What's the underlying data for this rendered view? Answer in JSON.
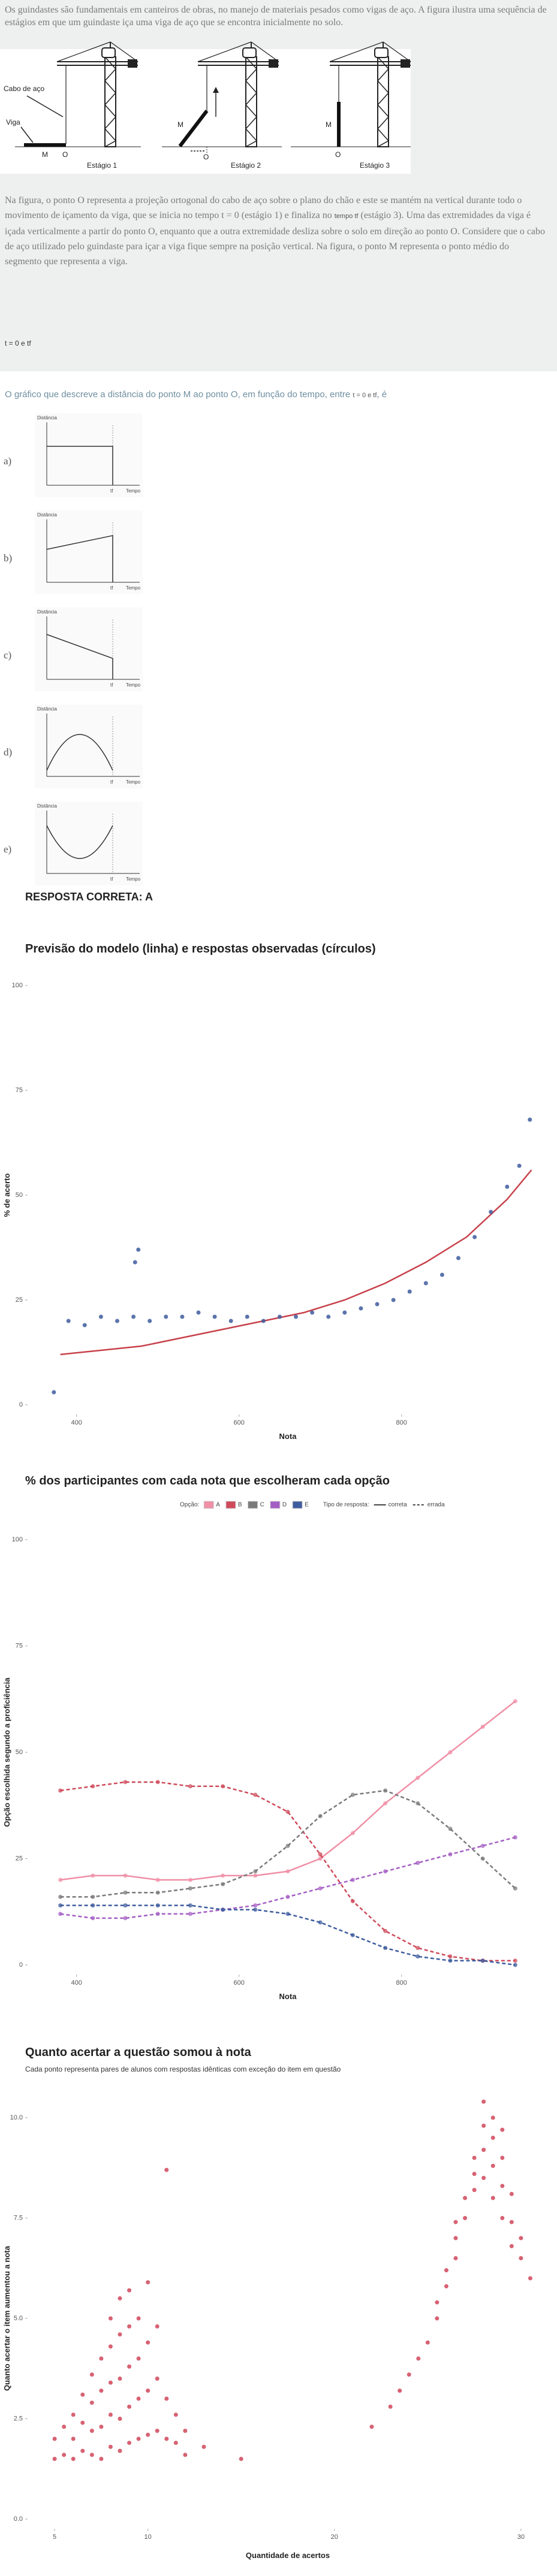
{
  "question": {
    "intro": "Os guindastes são fundamentais em canteiros de obras, no manejo de materiais pesados como vigas de aço. A figura ilustra uma sequência de estágios em que um  guindaste iça uma viga de aço que se encontra inicialmente no solo.",
    "figure": {
      "cable_label": "Cabo de aço",
      "beam_label": "Viga",
      "point_m": "M",
      "point_o": "O",
      "stages": [
        "Estágio 1",
        "Estágio 2",
        "Estágio 3"
      ]
    },
    "body_start": "Na figura, o ponto O representa a projeção ortogonal do cabo de aço sobre o plano do chão e este se mantém na vertical durante todo o movimento de içamento da viga, que se inicia no tempo t = 0 (estágio 1) e finaliza no ",
    "body_time": "tempo tf",
    "body_end": " (estágio 3). Uma das extremidades da viga é içada verticalmente a partir do ponto O, enquanto que a outra extremidade desliza sobre o solo em direção ao ponto O. Considere que o cabo de aço utilizado pelo guindaste para içar a viga fique sempre na posição vertical. Na figura, o ponto M representa o ponto médio do segmento que representa a viga.",
    "interval": "t = 0 e tf",
    "prompt_start": "O gráfico que descreve a distância do ponto M ao ponto O, em função do tempo, entre ",
    "prompt_interval": "t = 0 e tf",
    "prompt_end": ", é"
  },
  "options": [
    {
      "letter": "a)",
      "y_label": "Distância",
      "x_label": "Tempo",
      "t_label": "tf"
    },
    {
      "letter": "b)",
      "y_label": "Distância",
      "x_label": "Tempo",
      "t_label": "tf"
    },
    {
      "letter": "c)",
      "y_label": "Distância",
      "x_label": "Tempo",
      "t_label": "tf"
    },
    {
      "letter": "d)",
      "y_label": "Distância",
      "x_label": "Tempo",
      "t_label": "tf"
    },
    {
      "letter": "e)",
      "y_label": "Distância",
      "x_label": "Tempo",
      "t_label": "tf"
    }
  ],
  "answer": "RESPOSTA CORRETA: A",
  "chart_data": [
    {
      "type": "scatter",
      "title": "Previsão do modelo (linha) e respostas observadas (círculos)",
      "x_label": "Nota",
      "y_label": "% de acerto",
      "xlim": [
        350,
        970
      ],
      "ylim": [
        0,
        100
      ],
      "xticks": [
        400,
        600,
        800
      ],
      "yticks": [
        0,
        25,
        50,
        75,
        100
      ],
      "grid": false,
      "series": [
        {
          "type": "line",
          "color": "#c8414b",
          "x": [
            380,
            430,
            480,
            530,
            580,
            630,
            680,
            730,
            780,
            830,
            880,
            930,
            960
          ],
          "values": [
            12,
            13,
            14,
            16,
            18,
            20,
            22,
            25,
            29,
            34,
            40,
            49,
            56
          ]
        },
        {
          "type": "scatter",
          "color": "#3e5c9e",
          "x": [
            372,
            390,
            410,
            430,
            450,
            470,
            472,
            476,
            490,
            510,
            530,
            550,
            570,
            590,
            610,
            630,
            650,
            670,
            690,
            710,
            730,
            750,
            770,
            790,
            810,
            830,
            850,
            870,
            890,
            910,
            930,
            945,
            958
          ],
          "values": [
            3,
            20,
            19,
            21,
            20,
            21,
            34,
            37,
            20,
            21,
            21,
            22,
            21,
            20,
            21,
            20,
            21,
            21,
            22,
            21,
            22,
            23,
            24,
            25,
            27,
            29,
            31,
            35,
            40,
            46,
            52,
            57,
            68
          ]
        }
      ]
    },
    {
      "type": "line",
      "title": "% dos participantes com cada nota que escolheram cada opção",
      "x_label": "Nota",
      "y_label": "Opção escolhida segundo a proficiência",
      "legend_title": "Opção:",
      "line_type_legend": {
        "title": "Tipo de resposta:",
        "items": [
          {
            "label": "correta",
            "dash": "solid"
          },
          {
            "label": "errada",
            "dash": "dashed"
          }
        ]
      },
      "xlim": [
        350,
        970
      ],
      "ylim": [
        0,
        100
      ],
      "xticks": [
        400,
        600,
        800
      ],
      "yticks": [
        0,
        25,
        50,
        75,
        100
      ],
      "grid": false,
      "markers": true,
      "x": [
        380,
        420,
        460,
        500,
        540,
        580,
        620,
        660,
        700,
        740,
        780,
        820,
        860,
        900,
        940
      ],
      "series": [
        {
          "name": "A",
          "color": "#f08fa6",
          "dash": "solid",
          "values": [
            20,
            21,
            21,
            20,
            20,
            21,
            21,
            22,
            25,
            31,
            38,
            44,
            50,
            56,
            62
          ]
        },
        {
          "name": "B",
          "color": "#cf4a5a",
          "dash": "dashed",
          "values": [
            41,
            42,
            43,
            43,
            42,
            42,
            40,
            36,
            26,
            15,
            8,
            4,
            2,
            1,
            1
          ]
        },
        {
          "name": "C",
          "color": "#7a7a7a",
          "dash": "dashed",
          "values": [
            16,
            16,
            17,
            17,
            18,
            19,
            22,
            28,
            35,
            40,
            41,
            38,
            32,
            25,
            18
          ]
        },
        {
          "name": "D",
          "color": "#a45fc4",
          "dash": "dashed",
          "values": [
            12,
            11,
            11,
            12,
            12,
            13,
            14,
            16,
            18,
            20,
            22,
            24,
            26,
            28,
            30
          ]
        },
        {
          "name": "E",
          "color": "#3e5c9e",
          "dash": "dashed",
          "values": [
            14,
            14,
            14,
            14,
            14,
            13,
            13,
            12,
            10,
            7,
            4,
            2,
            1,
            1,
            0
          ]
        }
      ]
    },
    {
      "type": "scatter",
      "title": "Quanto acertar a questão somou à nota",
      "subtitle": "Cada ponto representa pares de alunos com respostas idênticas com exceção do item em questão",
      "x_label": "Quantidade de acertos",
      "y_label": "Quanto acertar o item aumentou a nota",
      "xlim": [
        4,
        31
      ],
      "ylim": [
        0,
        10
      ],
      "xticks": [
        5,
        10,
        20,
        30
      ],
      "yticks": [
        {
          "value": 0,
          "label": "0.0"
        },
        2.5,
        {
          "value": 5,
          "label": "5.0"
        },
        7.5,
        {
          "value": 10,
          "label": "10.0"
        }
      ],
      "grid": false,
      "color": "#d0465a",
      "x": [
        5,
        5,
        5.5,
        5.5,
        6,
        6,
        6,
        6.5,
        6.5,
        6.5,
        7,
        7,
        7,
        7,
        7.5,
        7.5,
        7.5,
        7.5,
        8,
        8,
        8,
        8,
        8,
        8.5,
        8.5,
        8.5,
        8.5,
        8.5,
        9,
        9,
        9,
        9,
        9,
        9.5,
        9.5,
        9.5,
        9.5,
        10,
        10,
        10,
        10,
        10.5,
        10.5,
        10.5,
        11,
        11,
        11,
        11.5,
        11.5,
        12,
        12,
        13,
        15,
        22,
        23,
        23.5,
        24,
        24.5,
        25,
        25.5,
        25.5,
        26,
        26,
        26.5,
        26.5,
        26.5,
        27,
        27,
        27.5,
        27.5,
        27.5,
        28,
        28,
        28,
        28,
        28.5,
        28.5,
        28.5,
        28.5,
        29,
        29,
        29,
        29,
        29.5,
        29.5,
        29.5,
        30,
        30,
        30.5
      ],
      "values": [
        1.5,
        2.0,
        1.6,
        2.3,
        1.5,
        2.0,
        2.6,
        1.7,
        2.4,
        3.1,
        1.6,
        2.2,
        2.9,
        3.6,
        1.5,
        2.3,
        3.2,
        4.0,
        1.8,
        2.6,
        3.4,
        4.3,
        5.0,
        1.7,
        2.5,
        3.5,
        4.6,
        5.5,
        1.9,
        2.8,
        3.8,
        4.8,
        5.7,
        2.0,
        3.0,
        4.0,
        5.0,
        2.1,
        3.2,
        4.4,
        5.9,
        2.2,
        3.5,
        4.8,
        2.0,
        3.0,
        8.7,
        1.9,
        2.6,
        1.6,
        2.2,
        1.8,
        1.5,
        2.3,
        2.8,
        3.2,
        3.6,
        4.0,
        4.4,
        5.0,
        5.4,
        5.8,
        6.2,
        6.5,
        7.0,
        7.4,
        7.5,
        8.0,
        8.2,
        8.6,
        9.0,
        8.5,
        9.2,
        9.8,
        10.4,
        8.0,
        8.8,
        9.5,
        10.0,
        7.5,
        8.3,
        9.0,
        9.7,
        6.8,
        7.4,
        8.1,
        6.5,
        7.0,
        6.0
      ]
    }
  ]
}
